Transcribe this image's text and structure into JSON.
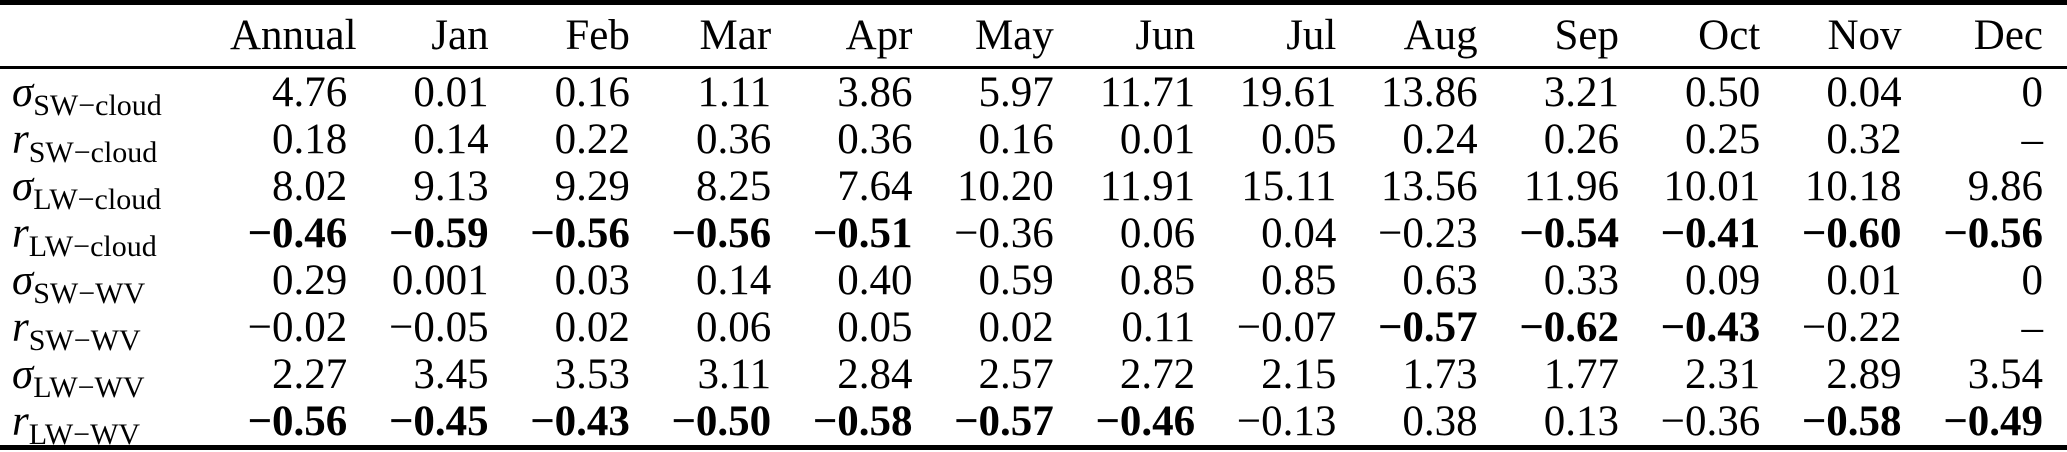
{
  "page": {
    "background": "#ffffff",
    "text_color": "#000000"
  },
  "table": {
    "columns": [
      "Annual",
      "Jan",
      "Feb",
      "Mar",
      "Apr",
      "May",
      "Jun",
      "Jul",
      "Aug",
      "Sep",
      "Oct",
      "Nov",
      "Dec"
    ],
    "row_label_header": "",
    "missing_value_marker": "–",
    "rows": [
      {
        "label": {
          "symbol": "σ",
          "subscript": "SW−cloud"
        },
        "values": [
          "4.76",
          "0.01",
          "0.16",
          "1.11",
          "3.86",
          "5.97",
          "11.71",
          "19.61",
          "13.86",
          "3.21",
          "0.50",
          "0.04",
          "0"
        ],
        "bold": [
          false,
          false,
          false,
          false,
          false,
          false,
          false,
          false,
          false,
          false,
          false,
          false,
          false
        ]
      },
      {
        "label": {
          "symbol": "r",
          "subscript": "SW−cloud"
        },
        "values": [
          "0.18",
          "0.14",
          "0.22",
          "0.36",
          "0.36",
          "0.16",
          "0.01",
          "0.05",
          "0.24",
          "0.26",
          "0.25",
          "0.32",
          "–"
        ],
        "bold": [
          false,
          false,
          false,
          false,
          false,
          false,
          false,
          false,
          false,
          false,
          false,
          false,
          false
        ]
      },
      {
        "label": {
          "symbol": "σ",
          "subscript": "LW−cloud"
        },
        "values": [
          "8.02",
          "9.13",
          "9.29",
          "8.25",
          "7.64",
          "10.20",
          "11.91",
          "15.11",
          "13.56",
          "11.96",
          "10.01",
          "10.18",
          "9.86"
        ],
        "bold": [
          false,
          false,
          false,
          false,
          false,
          false,
          false,
          false,
          false,
          false,
          false,
          false,
          false
        ]
      },
      {
        "label": {
          "symbol": "r",
          "subscript": "LW−cloud"
        },
        "values": [
          "−0.46",
          "−0.59",
          "−0.56",
          "−0.56",
          "−0.51",
          "−0.36",
          "0.06",
          "0.04",
          "−0.23",
          "−0.54",
          "−0.41",
          "−0.60",
          "−0.56"
        ],
        "bold": [
          true,
          true,
          true,
          true,
          true,
          false,
          false,
          false,
          false,
          true,
          true,
          true,
          true
        ]
      },
      {
        "label": {
          "symbol": "σ",
          "subscript": "SW−WV"
        },
        "values": [
          "0.29",
          "0.001",
          "0.03",
          "0.14",
          "0.40",
          "0.59",
          "0.85",
          "0.85",
          "0.63",
          "0.33",
          "0.09",
          "0.01",
          "0"
        ],
        "bold": [
          false,
          false,
          false,
          false,
          false,
          false,
          false,
          false,
          false,
          false,
          false,
          false,
          false
        ]
      },
      {
        "label": {
          "symbol": "r",
          "subscript": "SW−WV"
        },
        "values": [
          "−0.02",
          "−0.05",
          "0.02",
          "0.06",
          "0.05",
          "0.02",
          "0.11",
          "−0.07",
          "−0.57",
          "−0.62",
          "−0.43",
          "−0.22",
          "–"
        ],
        "bold": [
          false,
          false,
          false,
          false,
          false,
          false,
          false,
          false,
          true,
          true,
          true,
          false,
          false
        ]
      },
      {
        "label": {
          "symbol": "σ",
          "subscript": "LW−WV"
        },
        "values": [
          "2.27",
          "3.45",
          "3.53",
          "3.11",
          "2.84",
          "2.57",
          "2.72",
          "2.15",
          "1.73",
          "1.77",
          "2.31",
          "2.89",
          "3.54"
        ],
        "bold": [
          false,
          false,
          false,
          false,
          false,
          false,
          false,
          false,
          false,
          false,
          false,
          false,
          false
        ]
      },
      {
        "label": {
          "symbol": "r",
          "subscript": "LW−WV"
        },
        "values": [
          "−0.56",
          "−0.45",
          "−0.43",
          "−0.50",
          "−0.58",
          "−0.57",
          "−0.46",
          "−0.13",
          "0.38",
          "0.13",
          "−0.36",
          "−0.58",
          "−0.49"
        ],
        "bold": [
          true,
          true,
          true,
          true,
          true,
          true,
          true,
          false,
          false,
          false,
          false,
          true,
          true
        ]
      }
    ]
  }
}
